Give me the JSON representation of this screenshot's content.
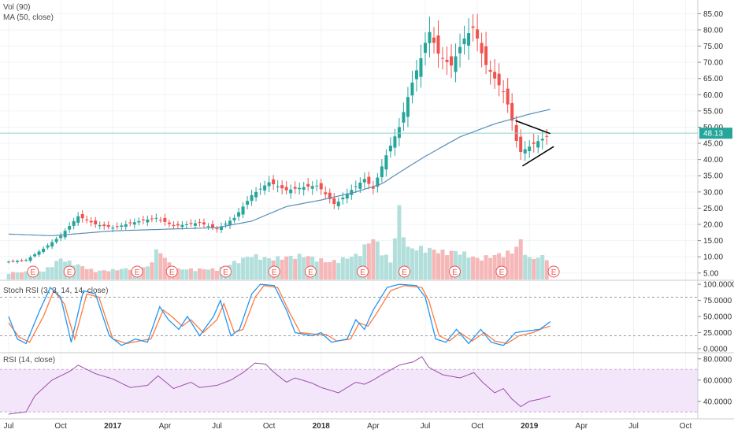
{
  "colors": {
    "up": "#26a69a",
    "down": "#ef5350",
    "vol_up": "#b2dfdb",
    "vol_down": "#f5b7b7",
    "ma": "#5b8db8",
    "stoch_k": "#2196f3",
    "stoch_d": "#ff7a3d",
    "rsi": "#9c4fa6",
    "rsi_band": "#f3e6fb",
    "price_line": "#8fd3c9",
    "earnings": "#ef5350",
    "triangle": "#000000"
  },
  "legend": {
    "vol": "Vol (90)",
    "ma": "MA (50, close)",
    "stoch": "Stoch RSI (3, 3, 14, 14, close)",
    "rsi": "RSI (14, close)"
  },
  "earnings_label": "E",
  "chart_data": {
    "type": "candlestick",
    "x_axis": {
      "ticks": [
        {
          "t": 0.0,
          "label": "Jul",
          "year": false
        },
        {
          "t": 3.0,
          "label": "Oct",
          "year": false
        },
        {
          "t": 6.0,
          "label": "2017",
          "year": true
        },
        {
          "t": 9.0,
          "label": "Apr",
          "year": false
        },
        {
          "t": 12.0,
          "label": "Jul",
          "year": false
        },
        {
          "t": 15.0,
          "label": "Oct",
          "year": false
        },
        {
          "t": 18.0,
          "label": "2018",
          "year": true
        },
        {
          "t": 21.0,
          "label": "Apr",
          "year": false
        },
        {
          "t": 24.0,
          "label": "Jul",
          "year": false
        },
        {
          "t": 27.0,
          "label": "Oct",
          "year": false
        },
        {
          "t": 30.0,
          "label": "2019",
          "year": true
        },
        {
          "t": 33.0,
          "label": "Apr",
          "year": false
        },
        {
          "t": 36.0,
          "label": "Jul",
          "year": false
        },
        {
          "t": 39.0,
          "label": "Oct",
          "year": false
        }
      ]
    },
    "price_axis": {
      "ylim": [
        3,
        88
      ],
      "ticks": [
        "5.00",
        "10.00",
        "15.00",
        "20.00",
        "25.00",
        "30.00",
        "35.00",
        "40.00",
        "45.00",
        "50.00",
        "55.00",
        "60.00",
        "65.00",
        "70.00",
        "75.00",
        "80.00",
        "85.00"
      ],
      "tick_values": [
        5,
        10,
        15,
        20,
        25,
        30,
        35,
        40,
        45,
        50,
        55,
        60,
        65,
        70,
        75,
        80,
        85
      ],
      "last_price": 48.13,
      "last_price_label": "48.13"
    },
    "stoch_axis": {
      "ylim": [
        -5,
        105
      ],
      "ticks": [
        "0.0000",
        "25.0000",
        "50.0000",
        "75.0000",
        "100.0000"
      ],
      "tick_values": [
        0,
        25,
        50,
        75,
        100
      ],
      "bands": [
        20,
        80
      ]
    },
    "rsi_axis": {
      "ylim": [
        25,
        85
      ],
      "ticks": [
        "40.0000",
        "60.0000",
        "80.0000"
      ],
      "tick_values": [
        40,
        60,
        80
      ],
      "band": [
        30,
        70
      ]
    },
    "earnings": [
      1.4,
      3.5,
      7.4,
      9.4,
      12.5,
      15.3,
      17.4,
      20.4,
      22.8,
      25.7,
      28.4,
      31.4
    ],
    "price_anchors": [
      [
        0.0,
        8.5
      ],
      [
        1.0,
        9.0
      ],
      [
        2.0,
        12.5
      ],
      [
        3.0,
        16.5
      ],
      [
        4.0,
        22.5
      ],
      [
        5.0,
        20.0
      ],
      [
        6.0,
        19.0
      ],
      [
        7.5,
        21.0
      ],
      [
        8.5,
        22.0
      ],
      [
        9.5,
        19.5
      ],
      [
        11.0,
        20.5
      ],
      [
        12.0,
        18.5
      ],
      [
        13.0,
        22.0
      ],
      [
        14.0,
        29.0
      ],
      [
        15.0,
        33.0
      ],
      [
        16.0,
        30.5
      ],
      [
        17.0,
        31.5
      ],
      [
        17.8,
        32.0
      ],
      [
        18.8,
        26.0
      ],
      [
        19.5,
        29.5
      ],
      [
        20.5,
        34.0
      ],
      [
        21.0,
        31.0
      ],
      [
        21.8,
        42.0
      ],
      [
        22.5,
        50.0
      ],
      [
        23.2,
        63.0
      ],
      [
        23.8,
        72.0
      ],
      [
        24.2,
        80.0
      ],
      [
        24.8,
        72.0
      ],
      [
        25.5,
        69.0
      ],
      [
        26.2,
        77.0
      ],
      [
        26.8,
        81.0
      ],
      [
        27.4,
        70.0
      ],
      [
        28.0,
        65.0
      ],
      [
        28.6,
        60.0
      ],
      [
        29.0,
        52.0
      ],
      [
        29.4,
        42.0
      ],
      [
        30.0,
        44.0
      ],
      [
        30.6,
        46.0
      ],
      [
        31.0,
        47.0
      ],
      [
        31.2,
        48.13
      ]
    ],
    "ma_anchors": [
      [
        0.0,
        17.0
      ],
      [
        2.5,
        16.5
      ],
      [
        6.0,
        18.0
      ],
      [
        9.0,
        18.5
      ],
      [
        12.0,
        19.0
      ],
      [
        14.0,
        21.0
      ],
      [
        16.0,
        25.5
      ],
      [
        18.0,
        27.5
      ],
      [
        20.0,
        30.0
      ],
      [
        21.5,
        32.5
      ],
      [
        22.5,
        36.0
      ],
      [
        24.0,
        41.0
      ],
      [
        26.0,
        47.0
      ],
      [
        28.0,
        51.0
      ],
      [
        29.0,
        52.5
      ],
      [
        30.0,
        54.0
      ],
      [
        31.2,
        55.5
      ]
    ],
    "volume_anchors": [
      [
        0.0,
        0.1
      ],
      [
        2.0,
        0.12
      ],
      [
        3.0,
        0.3
      ],
      [
        5.0,
        0.12
      ],
      [
        8.0,
        0.18
      ],
      [
        8.6,
        0.45
      ],
      [
        9.5,
        0.15
      ],
      [
        12.0,
        0.15
      ],
      [
        14.0,
        0.35
      ],
      [
        15.0,
        0.3
      ],
      [
        17.0,
        0.35
      ],
      [
        18.5,
        0.25
      ],
      [
        20.0,
        0.35
      ],
      [
        21.0,
        0.6
      ],
      [
        22.0,
        0.25
      ],
      [
        22.5,
        1.0
      ],
      [
        23.0,
        0.45
      ],
      [
        24.0,
        0.45
      ],
      [
        25.0,
        0.4
      ],
      [
        26.0,
        0.4
      ],
      [
        27.0,
        0.3
      ],
      [
        28.0,
        0.35
      ],
      [
        29.0,
        0.4
      ],
      [
        29.5,
        0.55
      ],
      [
        30.0,
        0.3
      ],
      [
        31.2,
        0.35
      ]
    ],
    "stoch_k_anchors": [
      [
        0.0,
        50
      ],
      [
        0.5,
        15
      ],
      [
        1.0,
        8
      ],
      [
        1.8,
        60
      ],
      [
        2.4,
        95
      ],
      [
        3.0,
        80
      ],
      [
        3.6,
        10
      ],
      [
        4.3,
        90
      ],
      [
        5.0,
        85
      ],
      [
        5.8,
        20
      ],
      [
        6.5,
        5
      ],
      [
        7.3,
        15
      ],
      [
        8.0,
        10
      ],
      [
        8.7,
        65
      ],
      [
        9.2,
        45
      ],
      [
        9.8,
        30
      ],
      [
        10.3,
        50
      ],
      [
        11.0,
        20
      ],
      [
        11.8,
        50
      ],
      [
        12.2,
        75
      ],
      [
        12.8,
        20
      ],
      [
        13.3,
        30
      ],
      [
        14.0,
        85
      ],
      [
        14.5,
        100
      ],
      [
        15.3,
        98
      ],
      [
        16.0,
        60
      ],
      [
        16.5,
        25
      ],
      [
        17.5,
        20
      ],
      [
        18.0,
        25
      ],
      [
        18.6,
        10
      ],
      [
        19.5,
        15
      ],
      [
        20.0,
        45
      ],
      [
        20.5,
        30
      ],
      [
        21.0,
        60
      ],
      [
        21.8,
        95
      ],
      [
        22.5,
        100
      ],
      [
        23.5,
        98
      ],
      [
        24.0,
        80
      ],
      [
        24.6,
        15
      ],
      [
        25.2,
        10
      ],
      [
        25.8,
        30
      ],
      [
        26.5,
        8
      ],
      [
        27.2,
        30
      ],
      [
        27.8,
        10
      ],
      [
        28.5,
        5
      ],
      [
        29.2,
        25
      ],
      [
        30.0,
        28
      ],
      [
        30.6,
        30
      ],
      [
        31.2,
        42
      ]
    ],
    "stoch_d_anchors": [
      [
        0.0,
        40
      ],
      [
        0.6,
        18
      ],
      [
        1.2,
        10
      ],
      [
        2.0,
        50
      ],
      [
        2.6,
        90
      ],
      [
        3.2,
        70
      ],
      [
        3.8,
        15
      ],
      [
        4.5,
        85
      ],
      [
        5.2,
        80
      ],
      [
        6.0,
        15
      ],
      [
        6.8,
        8
      ],
      [
        7.5,
        12
      ],
      [
        8.2,
        15
      ],
      [
        8.9,
        60
      ],
      [
        9.4,
        50
      ],
      [
        10.0,
        35
      ],
      [
        10.5,
        45
      ],
      [
        11.2,
        25
      ],
      [
        12.0,
        45
      ],
      [
        12.4,
        70
      ],
      [
        13.0,
        25
      ],
      [
        13.5,
        30
      ],
      [
        14.2,
        80
      ],
      [
        14.7,
        98
      ],
      [
        15.5,
        95
      ],
      [
        16.2,
        55
      ],
      [
        16.8,
        25
      ],
      [
        17.8,
        22
      ],
      [
        18.3,
        22
      ],
      [
        18.9,
        12
      ],
      [
        19.7,
        15
      ],
      [
        20.2,
        40
      ],
      [
        20.7,
        35
      ],
      [
        21.2,
        55
      ],
      [
        22.0,
        90
      ],
      [
        22.8,
        98
      ],
      [
        23.8,
        95
      ],
      [
        24.2,
        75
      ],
      [
        24.8,
        20
      ],
      [
        25.4,
        12
      ],
      [
        26.0,
        25
      ],
      [
        26.7,
        12
      ],
      [
        27.4,
        25
      ],
      [
        28.0,
        12
      ],
      [
        28.7,
        8
      ],
      [
        29.4,
        20
      ],
      [
        30.2,
        25
      ],
      [
        30.8,
        32
      ],
      [
        31.2,
        35
      ]
    ],
    "rsi_anchors": [
      [
        0.0,
        28
      ],
      [
        1.0,
        30
      ],
      [
        1.5,
        45
      ],
      [
        2.5,
        60
      ],
      [
        3.5,
        68
      ],
      [
        4.0,
        74
      ],
      [
        5.0,
        66
      ],
      [
        6.0,
        61
      ],
      [
        7.0,
        53
      ],
      [
        8.0,
        55
      ],
      [
        8.6,
        64
      ],
      [
        9.5,
        52
      ],
      [
        10.5,
        58
      ],
      [
        11.0,
        53
      ],
      [
        12.0,
        55
      ],
      [
        12.8,
        60
      ],
      [
        13.5,
        67
      ],
      [
        14.2,
        76
      ],
      [
        14.8,
        75
      ],
      [
        15.3,
        67
      ],
      [
        16.0,
        58
      ],
      [
        16.5,
        62
      ],
      [
        17.5,
        57
      ],
      [
        18.0,
        53
      ],
      [
        19.0,
        48
      ],
      [
        20.0,
        58
      ],
      [
        20.5,
        56
      ],
      [
        21.0,
        60
      ],
      [
        21.5,
        65
      ],
      [
        22.5,
        74
      ],
      [
        23.3,
        77
      ],
      [
        23.8,
        82
      ],
      [
        24.2,
        72
      ],
      [
        25.0,
        65
      ],
      [
        26.0,
        62
      ],
      [
        26.8,
        67
      ],
      [
        27.3,
        58
      ],
      [
        28.0,
        48
      ],
      [
        28.5,
        52
      ],
      [
        29.0,
        42
      ],
      [
        29.5,
        35
      ],
      [
        30.0,
        40
      ],
      [
        30.6,
        42
      ],
      [
        31.2,
        45
      ]
    ],
    "triangle": {
      "upper": [
        [
          29.2,
          52.0
        ],
        [
          31.2,
          48.0
        ]
      ],
      "lower": [
        [
          29.6,
          38.0
        ],
        [
          31.4,
          44.0
        ]
      ]
    }
  }
}
